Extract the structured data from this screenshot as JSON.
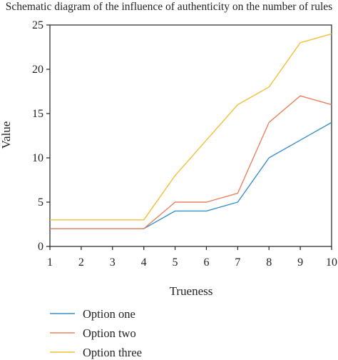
{
  "chart_data": {
    "type": "line",
    "title": "Schematic diagram of the influence of authenticity on the number of rules",
    "xlabel": "Trueness",
    "ylabel": "Value",
    "x": [
      1,
      2,
      3,
      4,
      5,
      6,
      7,
      8,
      9,
      10
    ],
    "xlim": [
      1,
      10
    ],
    "ylim": [
      0,
      25
    ],
    "yticks": [
      0,
      5,
      10,
      15,
      20,
      25
    ],
    "xticks": [
      1,
      2,
      3,
      4,
      5,
      6,
      7,
      8,
      9,
      10
    ],
    "grid": false,
    "legend_position": "bottom-left",
    "series": [
      {
        "name": "Option one",
        "color": "#3a8fcc",
        "values": [
          2,
          2,
          2,
          2,
          4,
          4,
          5,
          10,
          12,
          14
        ]
      },
      {
        "name": "Option two",
        "color": "#e8825e",
        "values": [
          2,
          2,
          2,
          2,
          5,
          5,
          6,
          14,
          17,
          16
        ]
      },
      {
        "name": "Option three",
        "color": "#f2bf3a",
        "values": [
          3,
          3,
          3,
          3,
          8,
          12,
          16,
          18,
          23,
          24
        ]
      }
    ]
  }
}
